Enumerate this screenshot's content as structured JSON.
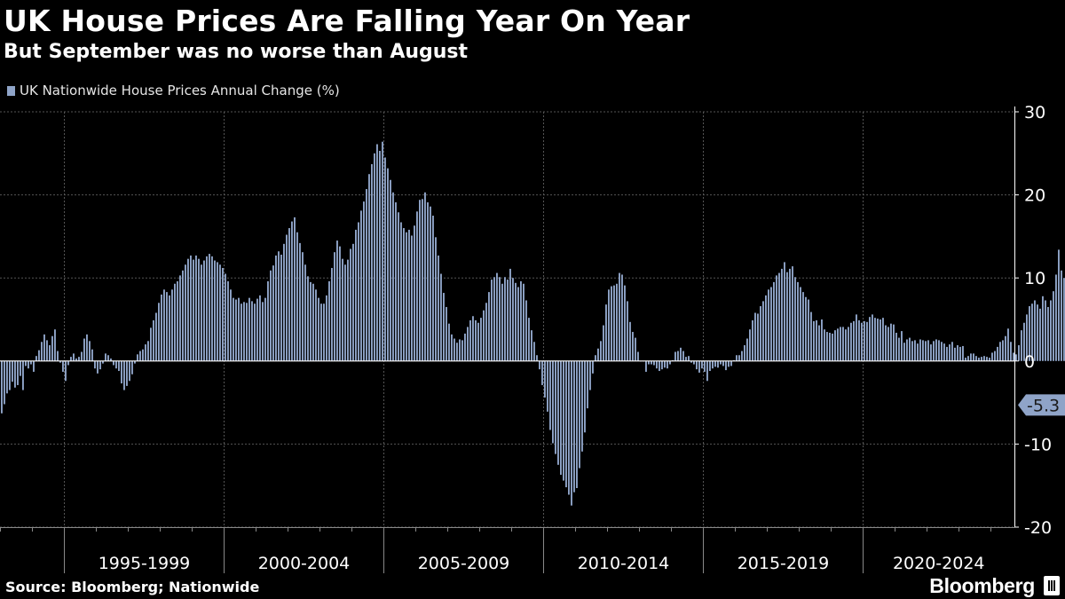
{
  "header": {
    "title": "UK House Prices Are Falling Year On Year",
    "subtitle": "But September was no worse than August"
  },
  "footer": {
    "source": "Source: Bloomberg; Nationwide",
    "brand": "Bloomberg"
  },
  "colors": {
    "background": "#000000",
    "bar": "#8fa4c8",
    "grid": "#555555",
    "text": "#ffffff",
    "label_box": "#8fa4c8"
  },
  "chart_data": {
    "type": "bar",
    "series": [
      {
        "name": "UK Nationwide House Prices Annual Change (%)",
        "start": "1993-01",
        "frequency": "monthly",
        "values": [
          -6.3,
          -5.2,
          -3.9,
          -3.5,
          -2.5,
          -3.2,
          -2.9,
          -1.8,
          -3.5,
          -0.6,
          -0.9,
          -0.4,
          -1.3,
          0.6,
          1.3,
          2.3,
          3.2,
          2.5,
          1.9,
          3.0,
          3.8,
          1.2,
          -0.2,
          -1.3,
          -2.4,
          -0.5,
          0.5,
          0.9,
          0.3,
          0.5,
          1.1,
          2.7,
          3.2,
          2.4,
          1.4,
          -0.9,
          -1.5,
          -1.0,
          -0.3,
          0.9,
          0.7,
          0.3,
          -0.5,
          -0.9,
          -1.2,
          -2.7,
          -3.5,
          -3.0,
          -2.4,
          -1.6,
          -0.3,
          0.8,
          1.2,
          1.4,
          2.0,
          2.4,
          4.0,
          4.9,
          5.8,
          7.0,
          8.0,
          8.6,
          8.3,
          7.9,
          8.6,
          9.3,
          9.6,
          10.3,
          10.9,
          11.6,
          12.3,
          12.7,
          12.2,
          12.7,
          12.3,
          11.6,
          12.1,
          12.6,
          12.9,
          12.6,
          12.1,
          11.9,
          11.6,
          11.2,
          10.5,
          9.6,
          8.6,
          7.6,
          7.4,
          7.6,
          6.9,
          7.1,
          7.0,
          7.6,
          7.2,
          6.9,
          7.5,
          7.9,
          7.1,
          7.6,
          9.6,
          10.9,
          11.5,
          12.7,
          13.2,
          12.8,
          14.1,
          15.2,
          16.0,
          16.8,
          17.3,
          15.5,
          14.2,
          13.1,
          11.6,
          10.2,
          9.5,
          9.3,
          8.6,
          7.6,
          6.9,
          6.9,
          7.9,
          9.6,
          11.2,
          13.1,
          14.5,
          13.8,
          12.3,
          11.6,
          12.2,
          13.5,
          14.1,
          15.8,
          16.7,
          18.1,
          19.2,
          20.7,
          22.5,
          23.7,
          25.0,
          26.1,
          25.3,
          26.4,
          24.5,
          23.2,
          21.8,
          20.3,
          19.1,
          17.9,
          16.7,
          16.0,
          15.5,
          15.8,
          15.1,
          16.3,
          18.0,
          19.4,
          19.5,
          20.3,
          19.1,
          18.6,
          17.5,
          14.9,
          12.7,
          10.5,
          8.2,
          6.5,
          4.5,
          3.2,
          2.7,
          2.2,
          2.6,
          2.5,
          3.3,
          4.1,
          4.9,
          5.4,
          4.9,
          4.6,
          5.2,
          6.1,
          7.0,
          8.3,
          9.8,
          10.1,
          10.6,
          10.1,
          9.3,
          10.1,
          9.8,
          11.1,
          10.0,
          9.4,
          8.9,
          9.6,
          9.3,
          7.3,
          5.2,
          3.7,
          2.3,
          0.7,
          -1.0,
          -2.9,
          -4.4,
          -6.1,
          -8.3,
          -9.9,
          -11.2,
          -12.5,
          -13.7,
          -14.4,
          -15.2,
          -16.1,
          -17.4,
          -15.8,
          -15.3,
          -12.9,
          -10.9,
          -8.6,
          -5.7,
          -3.5,
          -1.5,
          0.7,
          1.5,
          2.4,
          4.3,
          6.8,
          8.6,
          9.0,
          9.1,
          9.3,
          10.6,
          10.4,
          9.1,
          7.2,
          4.7,
          3.5,
          2.8,
          1.1,
          0.0,
          0.0,
          -1.3,
          -0.4,
          -0.4,
          -0.5,
          -0.9,
          -1.2,
          -1.0,
          -0.8,
          -0.9,
          -0.4,
          0.1,
          1.1,
          1.2,
          1.6,
          1.2,
          0.5,
          0.6,
          -0.2,
          -0.4,
          -1.0,
          -1.4,
          -0.9,
          -1.3,
          -2.4,
          -1.2,
          -0.9,
          -0.7,
          -0.8,
          -0.4,
          -0.6,
          -1.1,
          -0.7,
          -0.6,
          0.1,
          0.7,
          0.7,
          1.2,
          1.9,
          2.7,
          3.8,
          4.9,
          5.8,
          5.7,
          6.6,
          7.2,
          7.9,
          8.6,
          8.9,
          9.5,
          10.3,
          10.6,
          11.1,
          11.9,
          10.7,
          11.1,
          11.4,
          10.1,
          9.5,
          8.9,
          8.3,
          7.7,
          7.4,
          5.9,
          4.8,
          4.9,
          4.3,
          5.0,
          3.8,
          3.5,
          3.4,
          3.3,
          3.7,
          3.9,
          4.1,
          4.1,
          3.8,
          4.1,
          4.6,
          4.8,
          5.6,
          4.9,
          4.6,
          4.8,
          4.7,
          5.3,
          5.6,
          5.2,
          5.1,
          5.0,
          5.2,
          4.3,
          4.1,
          4.5,
          4.4,
          3.4,
          2.8,
          3.6,
          2.2,
          2.6,
          2.8,
          2.4,
          2.5,
          2.1,
          2.6,
          2.5,
          2.4,
          2.5,
          2.0,
          2.4,
          2.6,
          2.5,
          2.3,
          2.1,
          1.7,
          2.0,
          2.3,
          1.6,
          1.9,
          1.7,
          1.8,
          0.4,
          0.6,
          0.9,
          0.9,
          0.6,
          0.4,
          0.5,
          0.6,
          0.5,
          0.4,
          1.0,
          1.2,
          1.7,
          2.3,
          2.5,
          3.0,
          3.9,
          2.3,
          1.0,
          0.8,
          1.9,
          3.7,
          4.6,
          5.6,
          6.6,
          6.9,
          7.3,
          6.8,
          6.3,
          7.8,
          7.3,
          6.5,
          7.3,
          8.4,
          10.4,
          13.4,
          10.9,
          10.0,
          11.2,
          10.9,
          10.9,
          10.5,
          9.8,
          9.9,
          9.9,
          10.8,
          11.6,
          12.6,
          14.3,
          12.1,
          11.2,
          10.7,
          9.7,
          11.0,
          10.4,
          9.5,
          9.3,
          7.4,
          4.5,
          2.6,
          1.0,
          -1.1,
          -2.7,
          -3.4,
          -3.4,
          -3.7,
          -4.1,
          -5.3
        ]
      }
    ],
    "ylim": [
      -20,
      30
    ],
    "yticks": [
      -20,
      -10,
      0,
      10,
      20,
      30
    ],
    "ytick_labels": [
      "-20",
      "-10",
      "0",
      "10",
      "20",
      "30"
    ],
    "period_labels": [
      "1995-1999",
      "2000-2004",
      "2005-2009",
      "2010-2014",
      "2015-2019",
      "2020-2024"
    ],
    "period_starts": [
      "1995-01",
      "2000-01",
      "2005-01",
      "2010-01",
      "2015-01",
      "2020-01"
    ],
    "last_value_label": "-5.3",
    "grid": true,
    "legend_position": "top-left",
    "axis_side": "right"
  }
}
